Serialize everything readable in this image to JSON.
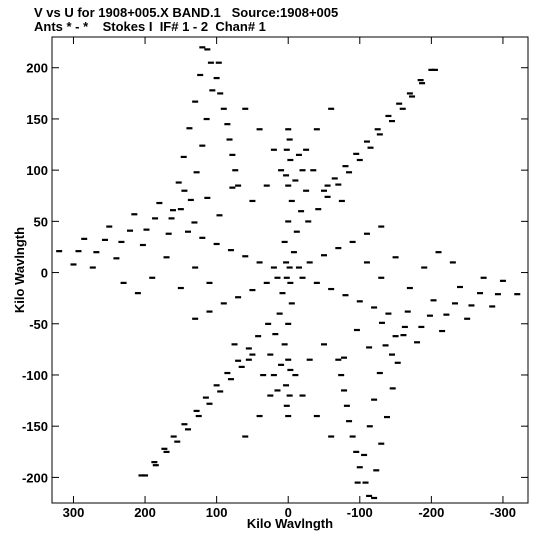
{
  "chart_data": {
    "type": "scatter",
    "title_line1": "V vs U for 1908+005.X BAND.1   Source:1908+005",
    "title_line2": "Ants * - *    Stokes I  IF# 1 - 2  Chan# 1",
    "xlabel": "Kilo Wavlngth",
    "ylabel": "Kilo Wavlngth",
    "xlim": [
      330,
      -335
    ],
    "ylim": [
      -225,
      230
    ],
    "x_ticks": [
      300,
      200,
      100,
      0,
      -100,
      -200,
      -300
    ],
    "y_ticks": [
      200,
      150,
      100,
      50,
      0,
      -50,
      -100,
      -150,
      -200
    ],
    "x_tick_labels": [
      "300",
      "200",
      "100",
      "0",
      "-100",
      "-200",
      "-300"
    ],
    "y_tick_labels": [
      "200",
      "150",
      "100",
      "50",
      "0",
      "-50",
      "-100",
      "-150",
      "-200"
    ],
    "grid": false,
    "marker_color": "#000000",
    "series": [
      {
        "points": [
          [
            293,
            21
          ],
          [
            273,
            5
          ],
          [
            256,
            32
          ],
          [
            240,
            14
          ],
          [
            221,
            41
          ],
          [
            203,
            27
          ],
          [
            186,
            53
          ],
          [
            167,
            38
          ],
          [
            150,
            62
          ],
          [
            131,
            49
          ],
          [
            113,
            73
          ],
          [
            96,
            56
          ],
          [
            78,
            83
          ],
          [
            -293,
            -21
          ],
          [
            -273,
            -5
          ],
          [
            -256,
            -32
          ],
          [
            -240,
            -14
          ],
          [
            -221,
            -41
          ],
          [
            -203,
            -27
          ],
          [
            -186,
            -53
          ],
          [
            -167,
            -38
          ],
          [
            -150,
            -62
          ],
          [
            -131,
            -49
          ],
          [
            -113,
            -73
          ],
          [
            -96,
            -56
          ],
          [
            -78,
            -83
          ],
          [
            113,
            218
          ],
          [
            97,
            205
          ],
          [
            123,
            193
          ],
          [
            106,
            178
          ],
          [
            130,
            167
          ],
          [
            114,
            150
          ],
          [
            138,
            141
          ],
          [
            120,
            124
          ],
          [
            146,
            113
          ],
          [
            128,
            98
          ],
          [
            153,
            88
          ],
          [
            136,
            71
          ],
          [
            161,
            61
          ],
          [
            -113,
            -218
          ],
          [
            -97,
            -205
          ],
          [
            -123,
            -193
          ],
          [
            -106,
            -178
          ],
          [
            -130,
            -167
          ],
          [
            -114,
            -150
          ],
          [
            -138,
            -141
          ],
          [
            -120,
            -124
          ],
          [
            -146,
            -113
          ],
          [
            -128,
            -98
          ],
          [
            -153,
            -88
          ],
          [
            -136,
            -71
          ],
          [
            -161,
            -61
          ],
          [
            -205,
            198
          ],
          [
            -187,
            185
          ],
          [
            -173,
            172
          ],
          [
            -160,
            160
          ],
          [
            -145,
            148
          ],
          [
            -128,
            135
          ],
          [
            -115,
            122
          ],
          [
            -100,
            110
          ],
          [
            -85,
            98
          ],
          [
            -70,
            86
          ],
          [
            -55,
            74
          ],
          [
            -42,
            62
          ],
          [
            -28,
            50
          ],
          [
            205,
            -198
          ],
          [
            187,
            -185
          ],
          [
            173,
            -172
          ],
          [
            160,
            -160
          ],
          [
            145,
            -148
          ],
          [
            128,
            -135
          ],
          [
            115,
            -122
          ],
          [
            100,
            -110
          ],
          [
            85,
            -98
          ],
          [
            70,
            -86
          ],
          [
            55,
            -74
          ],
          [
            42,
            -62
          ],
          [
            28,
            -50
          ],
          [
            -320,
            -21
          ],
          [
            -300,
            -8
          ],
          [
            -285,
            -33
          ],
          [
            -268,
            -20
          ],
          [
            -250,
            -45
          ],
          [
            -233,
            -30
          ],
          [
            -215,
            -57
          ],
          [
            -198,
            -42
          ],
          [
            -180,
            -68
          ],
          [
            -163,
            -53
          ],
          [
            -145,
            -80
          ],
          [
            320,
            21
          ],
          [
            300,
            8
          ],
          [
            285,
            33
          ],
          [
            268,
            20
          ],
          [
            250,
            45
          ],
          [
            233,
            30
          ],
          [
            215,
            57
          ],
          [
            198,
            42
          ],
          [
            180,
            68
          ],
          [
            163,
            53
          ],
          [
            145,
            80
          ],
          [
            200,
            -198
          ],
          [
            185,
            -188
          ],
          [
            170,
            -175
          ],
          [
            155,
            -165
          ],
          [
            140,
            -153
          ],
          [
            125,
            -140
          ],
          [
            110,
            -128
          ],
          [
            95,
            -116
          ],
          [
            80,
            -104
          ],
          [
            65,
            -92
          ],
          [
            50,
            -80
          ],
          [
            -200,
            198
          ],
          [
            -185,
            188
          ],
          [
            -170,
            175
          ],
          [
            -155,
            165
          ],
          [
            -140,
            153
          ],
          [
            -125,
            140
          ],
          [
            -110,
            128
          ],
          [
            -95,
            116
          ],
          [
            -80,
            104
          ],
          [
            -65,
            92
          ],
          [
            -50,
            80
          ],
          [
            -120,
            -220
          ],
          [
            -108,
            -205
          ],
          [
            -100,
            -190
          ],
          [
            -95,
            -175
          ],
          [
            -90,
            -160
          ],
          [
            -85,
            -145
          ],
          [
            -82,
            -130
          ],
          [
            -78,
            -115
          ],
          [
            -74,
            -100
          ],
          [
            -70,
            -85
          ],
          [
            120,
            220
          ],
          [
            108,
            205
          ],
          [
            100,
            190
          ],
          [
            95,
            175
          ],
          [
            90,
            160
          ],
          [
            85,
            145
          ],
          [
            82,
            130
          ],
          [
            78,
            115
          ],
          [
            74,
            100
          ],
          [
            70,
            85
          ],
          [
            -15,
            115
          ],
          [
            -20,
            100
          ],
          [
            -10,
            90
          ],
          [
            -25,
            80
          ],
          [
            -5,
            70
          ],
          [
            -18,
            60
          ],
          [
            0,
            50
          ],
          [
            -12,
            40
          ],
          [
            5,
            30
          ],
          [
            -8,
            20
          ],
          [
            3,
            10
          ],
          [
            -2,
            5
          ],
          [
            15,
            -115
          ],
          [
            20,
            -100
          ],
          [
            10,
            -90
          ],
          [
            25,
            -80
          ],
          [
            5,
            -70
          ],
          [
            18,
            -60
          ],
          [
            0,
            -50
          ],
          [
            12,
            -40
          ],
          [
            -5,
            -30
          ],
          [
            8,
            -20
          ],
          [
            -3,
            -10
          ],
          [
            2,
            -5
          ],
          [
            -130,
            45
          ],
          [
            -110,
            38
          ],
          [
            -90,
            30
          ],
          [
            -70,
            24
          ],
          [
            -50,
            17
          ],
          [
            -30,
            10
          ],
          [
            -15,
            5
          ],
          [
            130,
            -45
          ],
          [
            110,
            -38
          ],
          [
            90,
            -30
          ],
          [
            70,
            -24
          ],
          [
            50,
            -17
          ],
          [
            30,
            -10
          ],
          [
            15,
            -5
          ],
          [
            -140,
            -40
          ],
          [
            -120,
            -34
          ],
          [
            -100,
            -28
          ],
          [
            -80,
            -22
          ],
          [
            -60,
            -16
          ],
          [
            -40,
            -10
          ],
          [
            -20,
            -5
          ],
          [
            140,
            40
          ],
          [
            120,
            34
          ],
          [
            100,
            28
          ],
          [
            80,
            22
          ],
          [
            60,
            16
          ],
          [
            40,
            10
          ],
          [
            20,
            5
          ],
          [
            60,
            160
          ],
          [
            40,
            140
          ],
          [
            20,
            120
          ],
          [
            10,
            100
          ],
          [
            30,
            85
          ],
          [
            50,
            70
          ],
          [
            -60,
            -160
          ],
          [
            -40,
            -140
          ],
          [
            -20,
            -120
          ],
          [
            -10,
            -100
          ],
          [
            -30,
            -85
          ],
          [
            -50,
            -70
          ],
          [
            -60,
            160
          ],
          [
            -40,
            140
          ],
          [
            -25,
            120
          ],
          [
            -35,
            100
          ],
          [
            -55,
            85
          ],
          [
            -75,
            70
          ],
          [
            60,
            -160
          ],
          [
            40,
            -140
          ],
          [
            25,
            -120
          ],
          [
            35,
            -100
          ],
          [
            55,
            -85
          ],
          [
            75,
            -70
          ],
          [
            230,
            -10
          ],
          [
            210,
            -20
          ],
          [
            190,
            -5
          ],
          [
            170,
            15
          ],
          [
            150,
            -15
          ],
          [
            130,
            5
          ],
          [
            110,
            -10
          ],
          [
            -230,
            10
          ],
          [
            -210,
            20
          ],
          [
            -190,
            5
          ],
          [
            -170,
            -15
          ],
          [
            -150,
            15
          ],
          [
            -130,
            -5
          ],
          [
            -110,
            10
          ],
          [
            0,
            -140
          ],
          [
            2,
            -130
          ],
          [
            -2,
            -120
          ],
          [
            3,
            -110
          ],
          [
            -3,
            -95
          ],
          [
            0,
            -85
          ],
          [
            0,
            140
          ],
          [
            -2,
            130
          ],
          [
            2,
            120
          ],
          [
            -3,
            110
          ],
          [
            3,
            95
          ],
          [
            0,
            85
          ]
        ]
      }
    ]
  }
}
